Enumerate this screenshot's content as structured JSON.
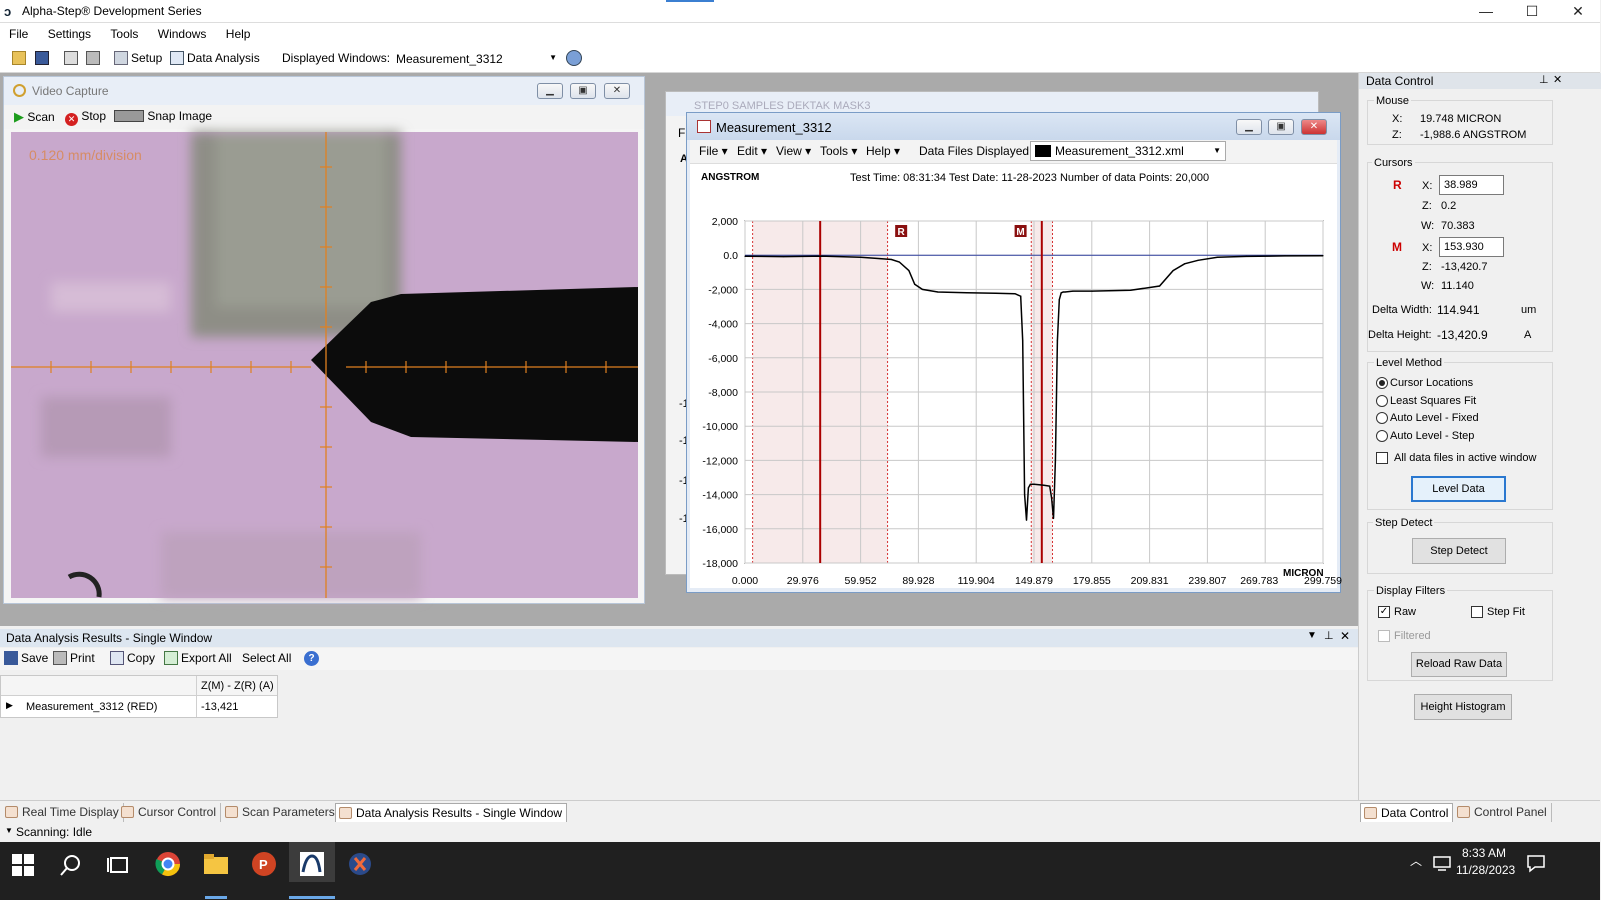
{
  "app": {
    "title": "Alpha-Step® Development Series",
    "min": "—",
    "max": "☐",
    "close": "✕"
  },
  "menu": [
    "File",
    "Settings",
    "Tools",
    "Windows",
    "Help"
  ],
  "toolbar": {
    "setup": "Setup",
    "data_analysis": "Data Analysis",
    "displayed_label": "Displayed Windows:",
    "displayed_value": "Measurement_3312"
  },
  "video": {
    "title": "Video Capture",
    "scan": "Scan",
    "stop": "Stop",
    "snap": "Snap Image",
    "scale_text": "0.120 mm/division"
  },
  "bgwin": {
    "title": "STEP0 SAMPLES DEKTAK MASK3",
    "menu_stub": "Fi",
    "a_stub": "A",
    "y_stubs": [
      "-1",
      "-1",
      "-1",
      "-1"
    ]
  },
  "meas": {
    "title": "Measurement_3312",
    "menus": [
      "File",
      "Edit",
      "View",
      "Tools",
      "Help"
    ],
    "files_label": "Data Files Displayed:",
    "file_value": "Measurement_3312.xml",
    "yunit": "ANGSTROM",
    "info": "Test Time: 08:31:34  Test Date: 11-28-2023  Number of data Points: 20,000",
    "xunit": "MICRON"
  },
  "chart_data": {
    "type": "line",
    "title": "",
    "xlabel": "MICRON",
    "ylabel": "ANGSTROM",
    "xlim": [
      0,
      299.759
    ],
    "ylim": [
      -18000,
      2000
    ],
    "x_ticks": [
      "0.000",
      "29.976",
      "59.952",
      "89.928",
      "119.904",
      "149.879",
      "179.855",
      "209.831",
      "239.807",
      "269.783",
      "299.759"
    ],
    "y_ticks": [
      "2,000",
      "0.0",
      "-2,000",
      "-4,000",
      "-6,000",
      "-8,000",
      "-10,000",
      "-12,000",
      "-14,000",
      "-16,000",
      "-18,000"
    ],
    "series": [
      {
        "x": [
          0,
          20,
          40,
          60,
          70,
          76,
          80,
          85,
          88,
          92,
          100,
          115,
          130,
          140,
          143,
          144,
          145,
          146,
          147,
          148,
          150,
          155,
          158,
          159,
          160,
          161,
          162,
          163,
          164,
          165,
          166,
          170,
          180,
          200,
          215,
          222,
          228,
          235,
          245,
          260,
          280,
          299.759
        ],
        "y": [
          -60,
          -80,
          -50,
          -120,
          -200,
          -250,
          -400,
          -900,
          -1700,
          -2000,
          -2150,
          -2200,
          -2230,
          -2250,
          -2400,
          -5000,
          -14000,
          -15500,
          -13600,
          -13400,
          -13400,
          -13450,
          -13500,
          -14200,
          -15400,
          -12000,
          -5000,
          -2600,
          -2200,
          -2150,
          -2150,
          -2100,
          -2100,
          -2050,
          -1800,
          -900,
          -500,
          -300,
          -120,
          -70,
          -40,
          -30
        ]
      }
    ],
    "cursor_R_x": 38.989,
    "cursor_M_x": 153.93,
    "cursor_R_label": "R",
    "cursor_M_label": "M"
  },
  "data_control": {
    "title": "Data Control",
    "mouse_label": "Mouse",
    "mouse_x_label": "X:",
    "mouse_x": "19.748  MICRON",
    "mouse_z_label": "Z:",
    "mouse_z": "-1,988.6  ANGSTROM",
    "cursors_label": "Cursors",
    "r_label": "R",
    "m_label": "M",
    "x_label": "X:",
    "z_label": "Z:",
    "w_label": "W:",
    "r_x": "38.989",
    "r_z": "0.2",
    "r_w": "70.383",
    "m_x": "153.930",
    "m_z": "-13,420.7",
    "m_w": "11.140",
    "dw_label": "Delta Width:",
    "dw_value": "114.941",
    "dw_unit": "um",
    "dh_label": "Delta Height:",
    "dh_value": "-13,420.9",
    "dh_unit": "A",
    "level_label": "Level Method",
    "level_opts": [
      "Cursor Locations",
      "Least Squares Fit",
      "Auto Level - Fixed",
      "Auto Level - Step"
    ],
    "all_files": "All data files in active window",
    "level_btn": "Level Data",
    "step_label": "Step Detect",
    "step_btn": "Step Detect",
    "filters_label": "Display Filters",
    "raw": "Raw",
    "stepfit": "Step Fit",
    "filtered": "Filtered",
    "reload": "Reload Raw Data",
    "hist": "Height Histogram"
  },
  "results": {
    "title": "Data Analysis Results - Single Window",
    "save": "Save",
    "print": "Print",
    "copy": "Copy",
    "export": "Export All",
    "select": "Select All",
    "col": "Z(M) - Z(R) (A)",
    "row_name": "Measurement_3312 (RED)",
    "row_val": "-13,421"
  },
  "tabs": [
    "Real Time Display",
    "Cursor Control",
    "Scan Parameters",
    "Data Analysis Results - Single Window"
  ],
  "rtabs": [
    "Data Control",
    "Control Panel"
  ],
  "status": "Scanning: Idle",
  "clock": {
    "time": "8:33 AM",
    "date": "11/28/2023"
  }
}
